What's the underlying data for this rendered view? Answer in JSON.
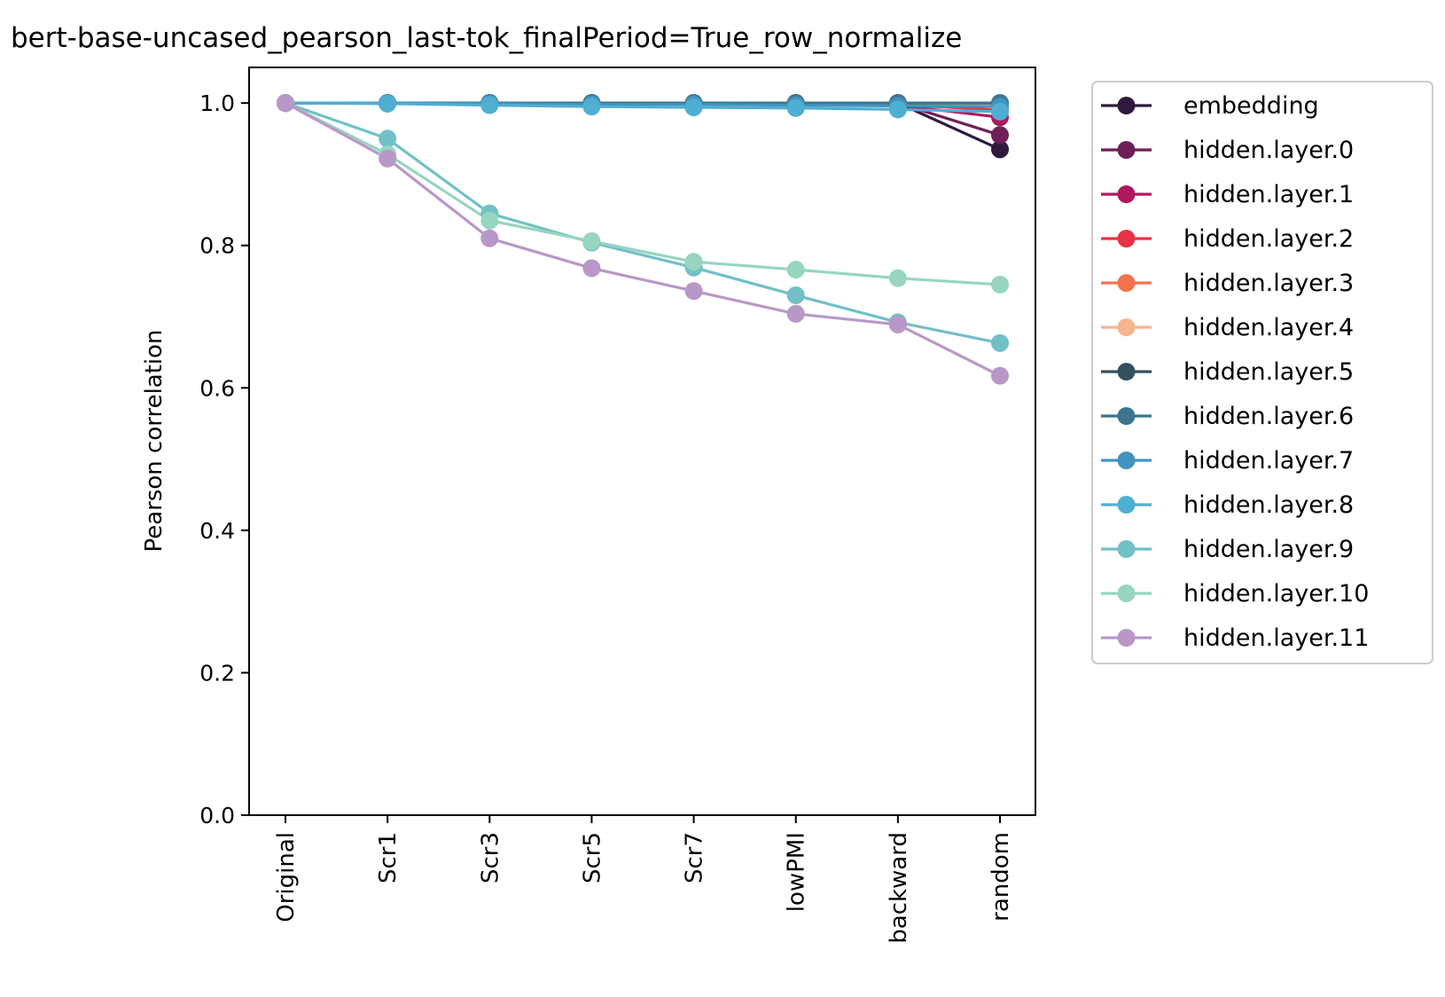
{
  "chart_data": {
    "type": "line",
    "title": "bert-base-uncased_pearson_last-tok_finalPeriod=True_row_normalize",
    "xlabel": "",
    "ylabel": "Pearson correlation",
    "categories": [
      "Original",
      "Scr1",
      "Scr3",
      "Scr5",
      "Scr7",
      "lowPMI",
      "backward",
      "random"
    ],
    "ylim": [
      0.0,
      1.05
    ],
    "yticks": [
      0.0,
      0.2,
      0.4,
      0.6,
      0.8,
      1.0
    ],
    "ytick_labels": [
      "0.0",
      "0.2",
      "0.4",
      "0.6",
      "0.8",
      "1.0"
    ],
    "grid": false,
    "legend_position": "outside-right",
    "series": [
      {
        "name": "embedding",
        "color": "#2f1a3d",
        "values": [
          1.0,
          1.0,
          1.0,
          1.0,
          1.0,
          1.0,
          1.0,
          0.935
        ]
      },
      {
        "name": "hidden.layer.0",
        "color": "#6e1f57",
        "values": [
          1.0,
          1.0,
          1.0,
          1.0,
          1.0,
          1.0,
          1.0,
          0.955
        ]
      },
      {
        "name": "hidden.layer.1",
        "color": "#b0175f",
        "values": [
          1.0,
          1.0,
          1.0,
          1.0,
          1.0,
          1.0,
          0.997,
          0.98
        ]
      },
      {
        "name": "hidden.layer.2",
        "color": "#e63346",
        "values": [
          1.0,
          1.0,
          1.0,
          1.0,
          1.0,
          1.0,
          0.998,
          0.99
        ]
      },
      {
        "name": "hidden.layer.3",
        "color": "#f3734f",
        "values": [
          1.0,
          1.0,
          1.0,
          1.0,
          1.0,
          1.0,
          0.999,
          0.995
        ]
      },
      {
        "name": "hidden.layer.4",
        "color": "#f6b48f",
        "values": [
          1.0,
          1.0,
          1.0,
          1.0,
          1.0,
          1.0,
          0.999,
          0.997
        ]
      },
      {
        "name": "hidden.layer.5",
        "color": "#34505f",
        "values": [
          1.0,
          1.0,
          1.0,
          1.0,
          1.0,
          1.0,
          1.0,
          1.0
        ]
      },
      {
        "name": "hidden.layer.6",
        "color": "#3b7590",
        "values": [
          1.0,
          1.0,
          1.0,
          1.0,
          1.0,
          1.0,
          1.0,
          1.0
        ]
      },
      {
        "name": "hidden.layer.7",
        "color": "#4194bd",
        "values": [
          1.0,
          1.0,
          0.999,
          0.998,
          0.998,
          0.997,
          0.996,
          0.995
        ]
      },
      {
        "name": "hidden.layer.8",
        "color": "#4fafd2",
        "values": [
          1.0,
          0.999,
          0.997,
          0.995,
          0.994,
          0.993,
          0.991,
          0.988
        ]
      },
      {
        "name": "hidden.layer.9",
        "color": "#72c0c6",
        "values": [
          1.0,
          0.95,
          0.845,
          0.804,
          0.769,
          0.73,
          0.692,
          0.663
        ]
      },
      {
        "name": "hidden.layer.10",
        "color": "#97d5c0",
        "values": [
          1.0,
          0.928,
          0.835,
          0.806,
          0.777,
          0.766,
          0.754,
          0.745
        ]
      },
      {
        "name": "hidden.layer.11",
        "color": "#b997c8",
        "values": [
          1.0,
          0.922,
          0.81,
          0.768,
          0.736,
          0.704,
          0.689,
          0.617
        ]
      }
    ]
  }
}
